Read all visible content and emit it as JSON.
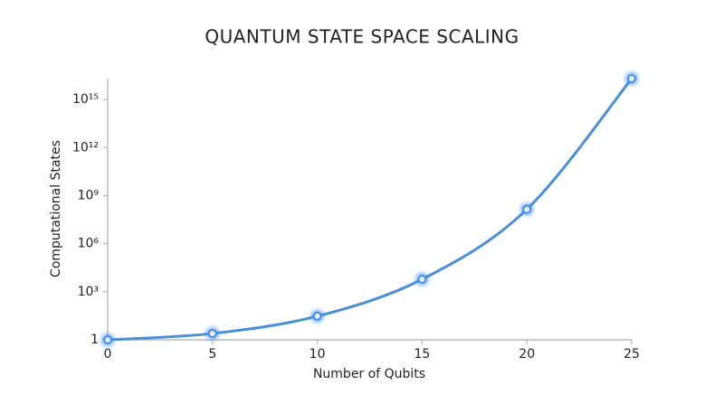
{
  "chart_data": {
    "type": "line",
    "title": "QUANTUM STATE SPACE SCALING",
    "x_label": "Number of Qubits",
    "y_label": "Computational States",
    "x": [
      0,
      5,
      10,
      15,
      20,
      25
    ],
    "series": [
      {
        "name": "Computational States",
        "color": "#4a8fd6",
        "values": [
          1,
          2.5,
          30,
          6000,
          140000000,
          20000000000000000
        ]
      }
    ],
    "xlim": [
      0,
      25
    ],
    "xticks": [
      0,
      5,
      10,
      15,
      20,
      25
    ],
    "ylim": [
      1,
      20000000000000000
    ],
    "y_scale": "log",
    "yticks": [
      1,
      {
        "value": 1000,
        "label": "10³"
      },
      {
        "value": 1000000,
        "label": "10⁶"
      },
      {
        "value": 1000000000,
        "label": "10⁹"
      },
      {
        "value": 1000000000000,
        "label": "10¹²"
      },
      {
        "value": 1000000000000000,
        "label": "10¹⁵"
      }
    ],
    "grid": false
  }
}
